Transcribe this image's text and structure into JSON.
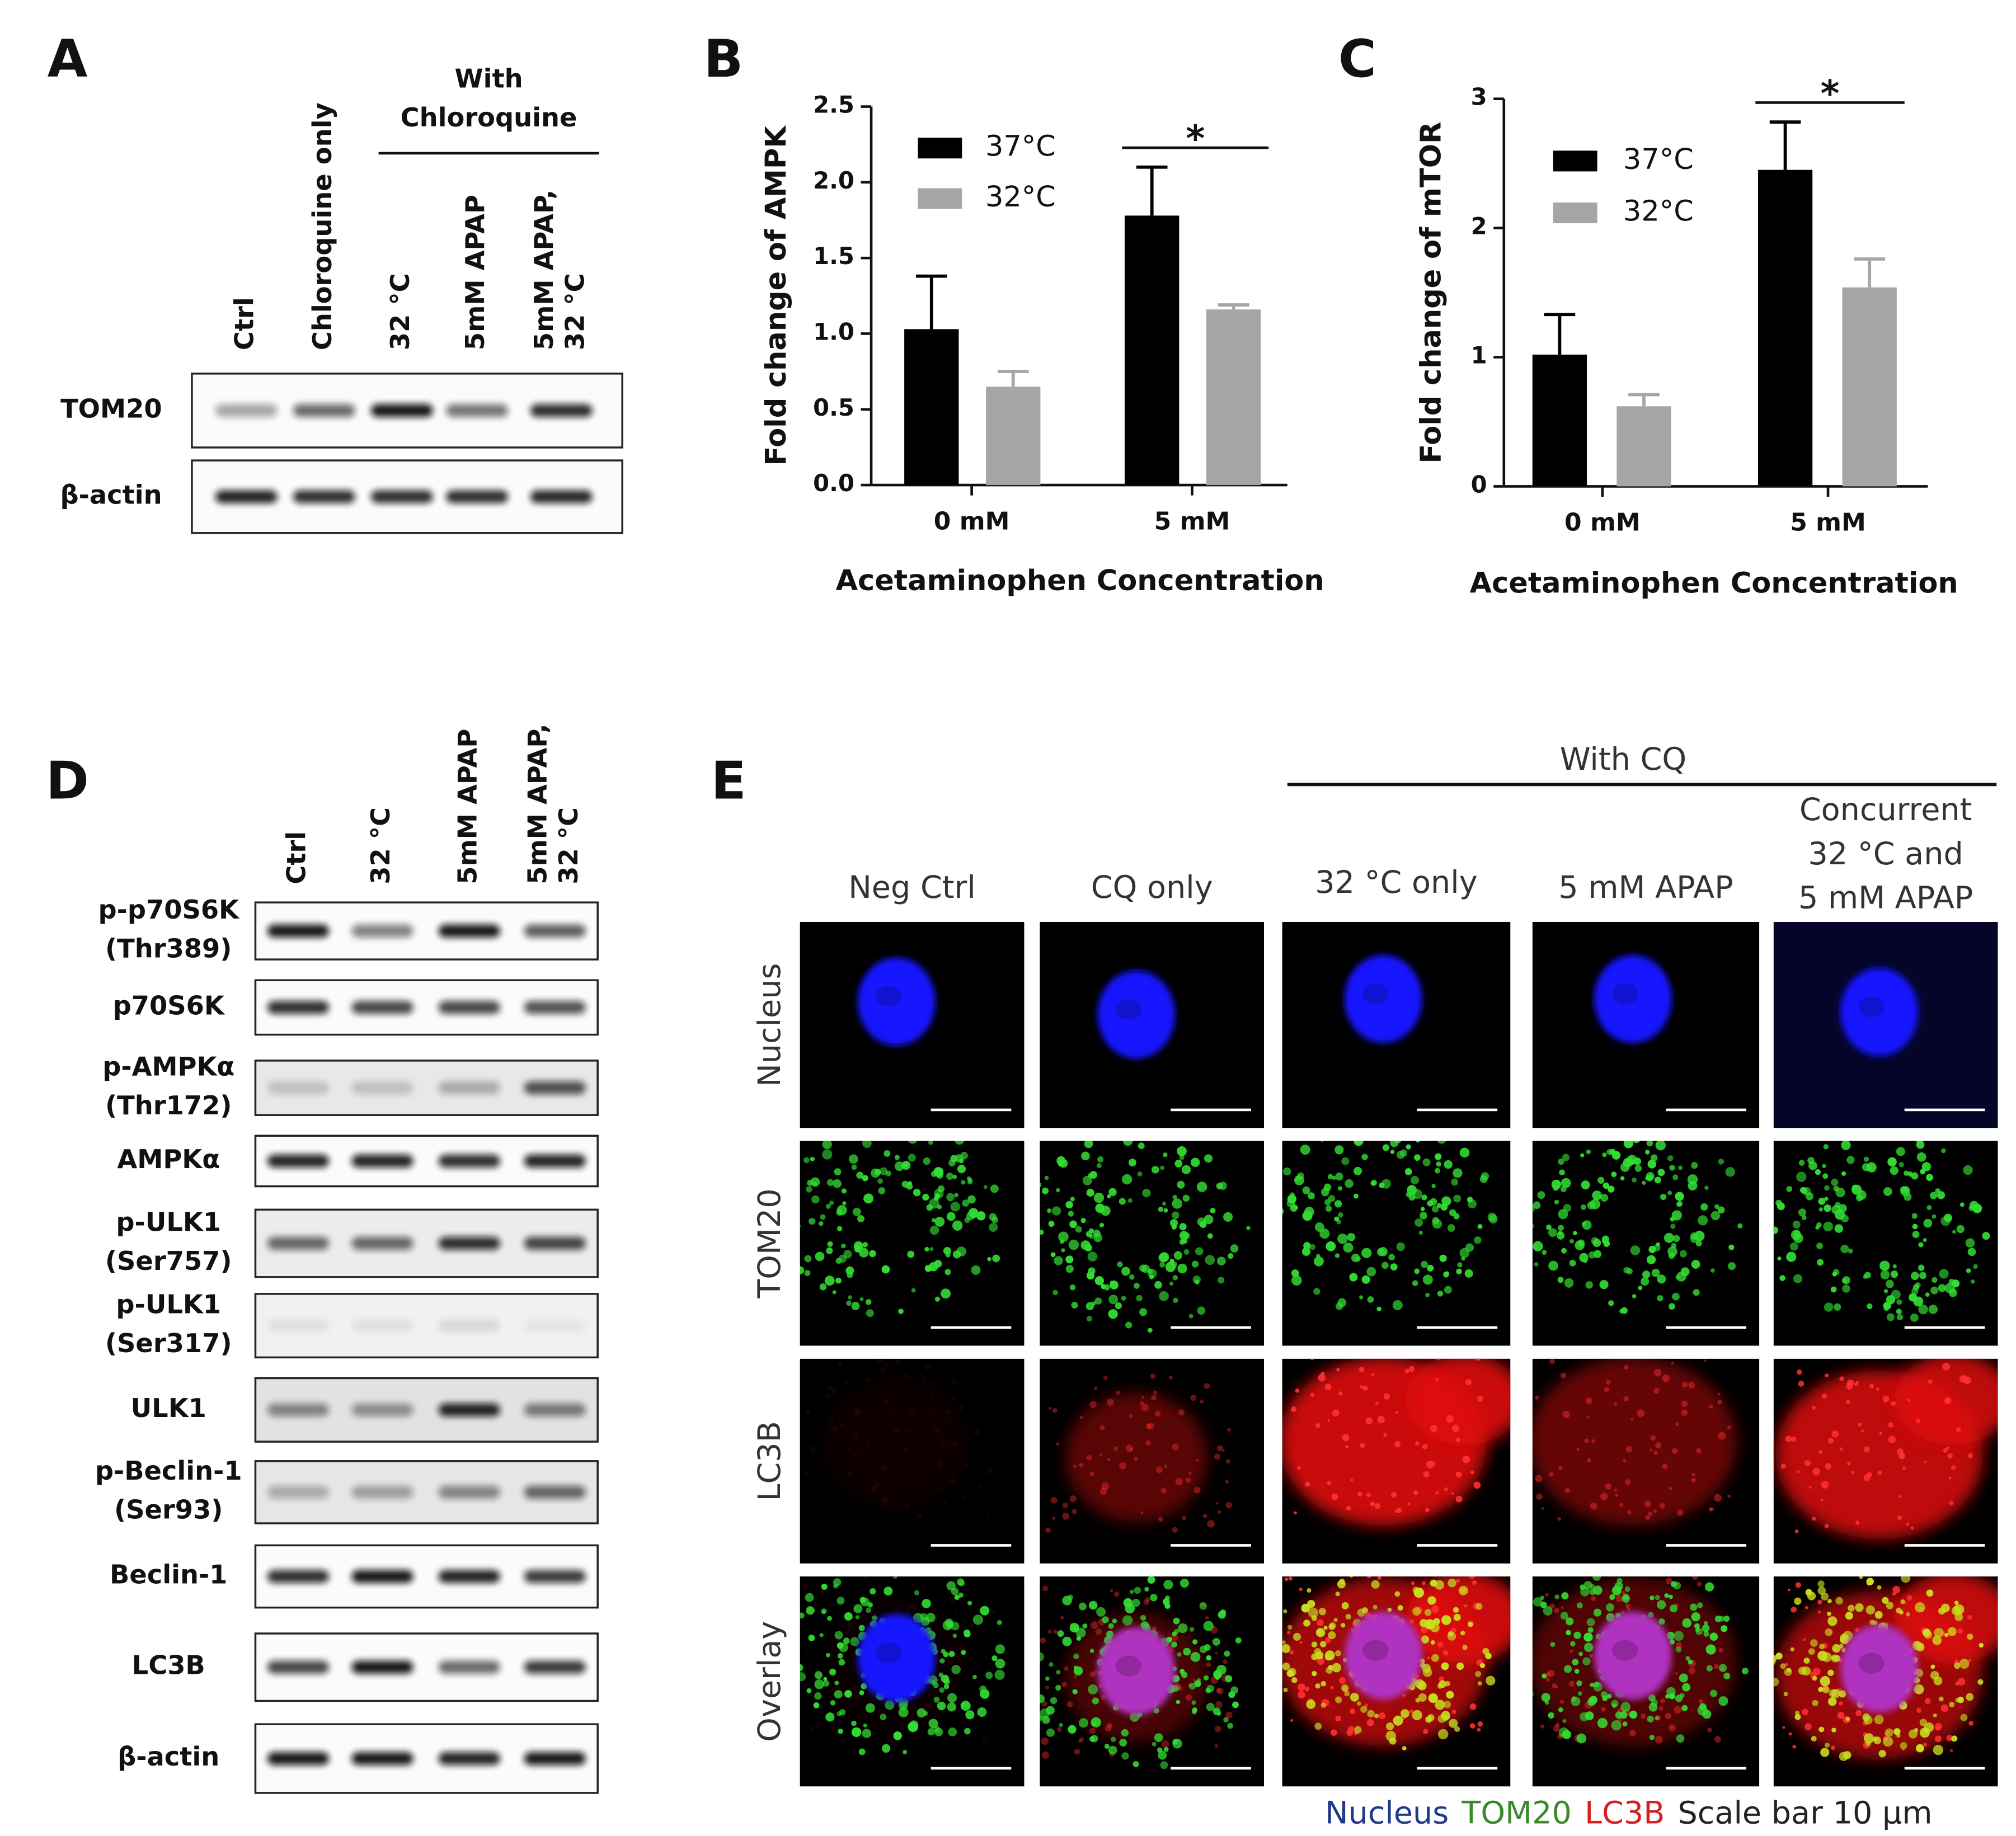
{
  "panel_a": {
    "label": "A",
    "group_label": [
      "With",
      "Chloroquine"
    ],
    "lanes": [
      [
        "Ctrl"
      ],
      [
        "Chloroquine only"
      ],
      [
        "32 °C"
      ],
      [
        "5mM APAP"
      ],
      [
        "5mM APAP,",
        "32 °C"
      ]
    ],
    "rows": [
      [
        "TOM20"
      ],
      [
        "β-actin"
      ]
    ]
  },
  "chart_data": [
    {
      "type": "bar",
      "label": "B",
      "ylabel": "Fold change of AMPK",
      "xlabel": "Acetaminophen Concentration",
      "categories": [
        "0 mM",
        "5 mM"
      ],
      "series": [
        {
          "name": "37°C",
          "color": "#000000",
          "values": [
            1.03,
            1.78
          ],
          "errors": [
            0.35,
            0.32
          ]
        },
        {
          "name": "32°C",
          "color": "#a6a6a6",
          "values": [
            0.65,
            1.16
          ],
          "errors": [
            0.1,
            0.03
          ]
        }
      ],
      "ylim": [
        0,
        2.5
      ],
      "yticks": [
        {
          "value": 0,
          "label": "0.0"
        },
        0.5,
        {
          "value": 1,
          "label": "1.0"
        },
        1.5,
        {
          "value": 2,
          "label": "2.0"
        },
        2.5
      ],
      "annotations": [
        "*"
      ]
    },
    {
      "type": "bar",
      "label": "C",
      "ylabel": "Fold change of mTOR",
      "xlabel": "Acetaminophen Concentration",
      "categories": [
        "0 mM",
        "5 mM"
      ],
      "series": [
        {
          "name": "37°C",
          "color": "#000000",
          "values": [
            1.02,
            2.45
          ],
          "errors": [
            0.31,
            0.37
          ]
        },
        {
          "name": "32°C",
          "color": "#a6a6a6",
          "values": [
            0.62,
            1.54
          ],
          "errors": [
            0.09,
            0.22
          ]
        }
      ],
      "ylim": [
        0,
        3
      ],
      "yticks": [
        0,
        1,
        2,
        3
      ],
      "annotations": [
        "*"
      ]
    }
  ],
  "panel_d": {
    "label": "D",
    "lanes": [
      [
        "Ctrl"
      ],
      [
        "32 °C"
      ],
      [
        "5mM APAP"
      ],
      [
        "5mM APAP,",
        "32 °C"
      ]
    ],
    "rows": [
      [
        "p-p70S6K",
        "(Thr389)"
      ],
      [
        "p70S6K"
      ],
      [
        "p-AMPKα",
        "(Thr172)"
      ],
      [
        "AMPKα"
      ],
      [
        "p-ULK1",
        "(Ser757)"
      ],
      [
        "p-ULK1",
        "(Ser317)"
      ],
      [
        "ULK1"
      ],
      [
        "p-Beclin-1",
        "(Ser93)"
      ],
      [
        "Beclin-1"
      ],
      [
        "LC3B"
      ],
      [
        "β-actin"
      ]
    ]
  },
  "panel_e": {
    "label": "E",
    "group_label": "With CQ",
    "columns": [
      [
        "Neg Ctrl"
      ],
      [
        "CQ only"
      ],
      [
        "32 °C only"
      ],
      [
        "5 mM APAP"
      ],
      [
        "Concurrent",
        "32 °C and",
        "5 mM APAP"
      ]
    ],
    "rows": [
      "Nucleus",
      "TOM20",
      "LC3B",
      "Overlay"
    ],
    "legend": [
      {
        "text": "Nucleus",
        "color": "#1f3a8a"
      },
      {
        "text": "TOM20",
        "color": "#3a8a2a"
      },
      {
        "text": "LC3B",
        "color": "#d42020"
      },
      {
        "text": "Scale bar 10 μm",
        "color": "#222222"
      }
    ]
  }
}
